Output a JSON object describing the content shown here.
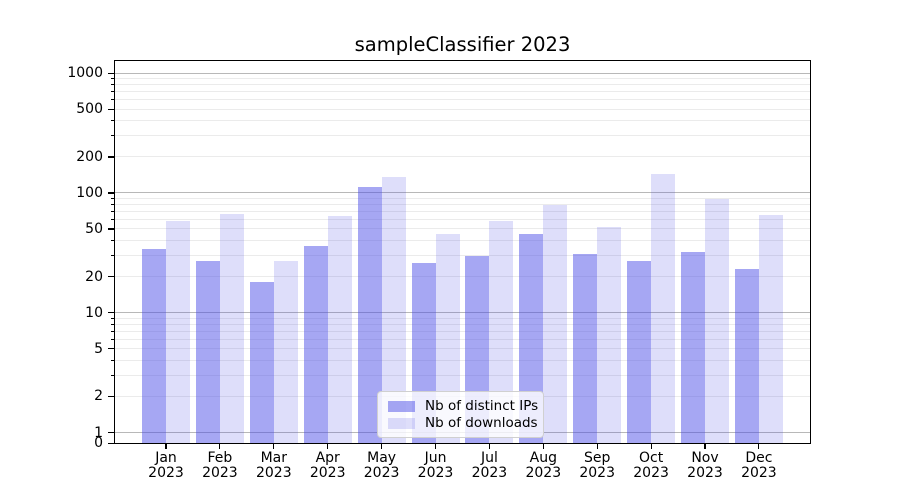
{
  "title": "sampleClassifier 2023",
  "colors": {
    "bar_distinct_ips": "rgba(70,72,230,0.48)",
    "bar_downloads": "rgba(70,72,230,0.18)",
    "grid_major": "#b8b8b8",
    "grid_minor": "#ebebeb",
    "spine": "#000000",
    "text": "#000000",
    "legend_border": "#d0d0d0",
    "legend_background": "rgba(255,255,255,0.8)"
  },
  "chart_data": {
    "type": "bar",
    "title": "sampleClassifier 2023",
    "categories": [
      "Jan 2023",
      "Feb 2023",
      "Mar 2023",
      "Apr 2023",
      "May 2023",
      "Jun 2023",
      "Jul 2023",
      "Aug 2023",
      "Sep 2023",
      "Oct 2023",
      "Nov 2023",
      "Dec 2023"
    ],
    "series": [
      {
        "name": "Nb of distinct IPs",
        "color": "rgba(70,72,230,0.48)",
        "values": [
          34,
          27,
          18,
          36,
          113,
          26,
          30,
          45,
          31,
          27,
          32,
          23
        ]
      },
      {
        "name": "Nb of downloads",
        "color": "rgba(70,72,230,0.18)",
        "values": [
          58,
          67,
          27,
          64,
          135,
          45,
          58,
          79,
          52,
          145,
          89,
          65
        ]
      }
    ],
    "xlabel": "",
    "ylabel": "",
    "yscale": "symlog",
    "yticks": [
      0,
      1,
      2,
      5,
      10,
      20,
      50,
      100,
      200,
      500,
      1000
    ],
    "ylim": [
      0,
      1312
    ],
    "grid": true,
    "legend_position": "lower center"
  }
}
